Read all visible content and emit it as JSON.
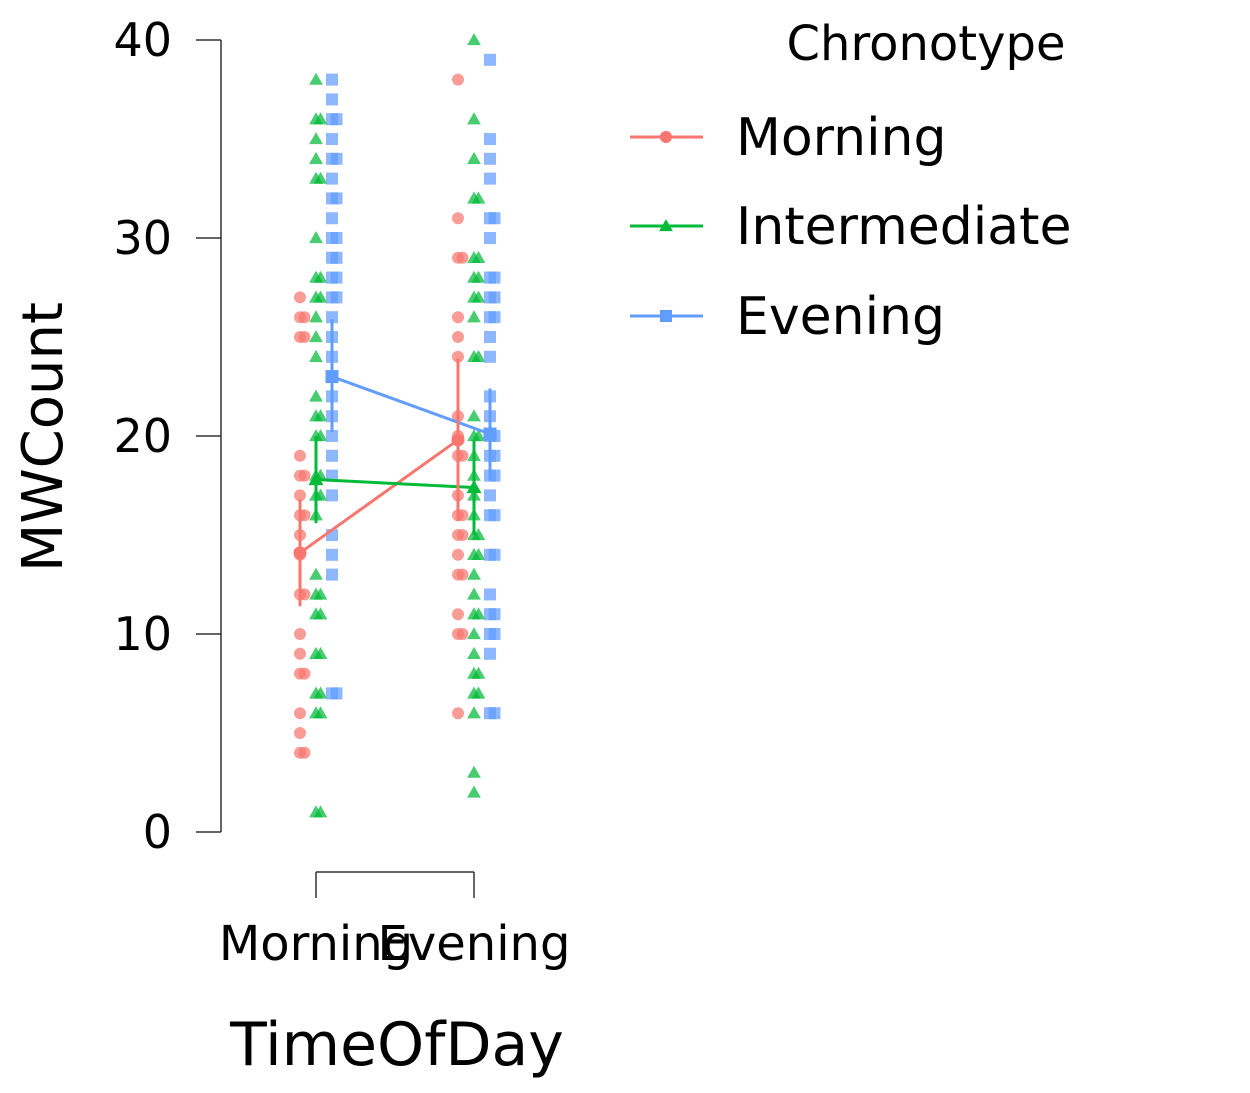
{
  "chart_data": {
    "type": "line",
    "ylabel": "MWCount",
    "xlabel": "TimeOfDay",
    "categories": [
      "Morning",
      "Evening"
    ],
    "ylim": [
      0,
      40
    ],
    "yticks": [
      0,
      10,
      20,
      30,
      40
    ],
    "grid": false,
    "legend": {
      "title": "Chronotype",
      "placement": "right"
    },
    "series": [
      {
        "name": "Morning",
        "color": "#F8766D",
        "marker": "circle",
        "means": [
          14.1,
          19.8
        ],
        "ci_low": [
          11.4,
          15.7
        ],
        "ci_high": [
          16.8,
          23.9
        ],
        "points": [
          [
            27,
            26,
            26,
            25,
            25,
            19,
            18,
            18,
            17,
            16,
            16,
            15,
            14,
            12,
            12,
            10,
            9,
            8,
            8,
            6,
            5,
            4,
            4
          ],
          [
            38,
            31,
            29,
            29,
            26,
            25,
            24,
            21,
            20,
            19,
            19,
            17,
            16,
            16,
            15,
            15,
            14,
            13,
            13,
            11,
            10,
            10,
            6
          ]
        ]
      },
      {
        "name": "Intermediate",
        "color": "#00BA38",
        "marker": "triangle",
        "means": [
          17.8,
          17.4
        ],
        "ci_low": [
          15.6,
          15.0
        ],
        "ci_high": [
          20.0,
          19.8
        ],
        "points": [
          [
            38,
            36,
            36,
            35,
            34,
            33,
            33,
            30,
            28,
            28,
            27,
            27,
            26,
            25,
            24,
            22,
            21,
            21,
            20,
            20,
            18,
            18,
            17,
            17,
            16,
            13,
            12,
            12,
            11,
            11,
            9,
            9,
            7,
            7,
            6,
            6,
            1,
            1
          ],
          [
            40,
            36,
            34,
            32,
            32,
            29,
            29,
            28,
            28,
            27,
            27,
            26,
            24,
            24,
            21,
            20,
            20,
            19,
            18,
            17,
            16,
            15,
            15,
            14,
            14,
            13,
            12,
            11,
            11,
            10,
            9,
            8,
            8,
            7,
            7,
            6,
            3,
            2
          ]
        ]
      },
      {
        "name": "Evening",
        "color": "#619CFF",
        "marker": "square",
        "means": [
          23.0,
          20.1
        ],
        "ci_low": [
          20.2,
          17.8
        ],
        "ci_high": [
          25.9,
          22.4
        ],
        "points": [
          [
            38,
            37,
            36,
            36,
            35,
            34,
            34,
            33,
            32,
            32,
            31,
            30,
            30,
            29,
            29,
            28,
            28,
            27,
            27,
            26,
            25,
            24,
            23,
            22,
            21,
            20,
            19,
            18,
            17,
            15,
            14,
            13,
            7,
            7
          ],
          [
            39,
            35,
            34,
            33,
            31,
            31,
            30,
            28,
            28,
            27,
            27,
            26,
            26,
            25,
            24,
            22,
            21,
            20,
            20,
            19,
            19,
            18,
            18,
            17,
            16,
            16,
            14,
            14,
            12,
            11,
            11,
            10,
            10,
            9,
            6,
            6
          ]
        ]
      }
    ]
  }
}
